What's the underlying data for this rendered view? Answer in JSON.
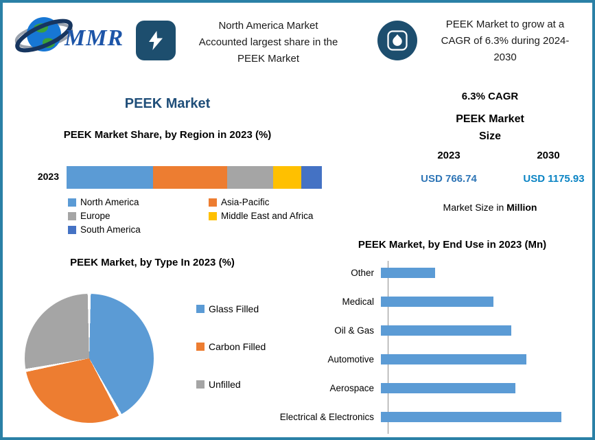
{
  "page": {
    "border_color": "#2a80a6",
    "background": "#ffffff"
  },
  "header": {
    "logo_text": "MMR",
    "highlight_left": "North America Market\nAccounted largest share in the\nPEEK Market",
    "highlight_right": "PEEK Market to grow at a\nCAGR of 6.3% during 2024-\n2030"
  },
  "left_panel": {
    "title": "PEEK Market",
    "region_year_label": "2023"
  },
  "right_panel": {
    "cagr_label": "6.3% CAGR",
    "size_heading": "PEEK Market\nSize",
    "year_left": "2023",
    "year_right": "2030",
    "value_left": "USD 766.74",
    "value_right": "USD 1175.93",
    "value_left_color": "#2e75b6",
    "value_right_color": "#0b84c4",
    "note_prefix": "Market Size in ",
    "note_bold": "Million"
  },
  "chart_data": [
    {
      "type": "bar",
      "subtype": "stacked-horizontal",
      "title": "PEEK Market Share, by Region in 2023 (%)",
      "categories": [
        "2023"
      ],
      "series": [
        {
          "name": "North America",
          "values": [
            34
          ],
          "color": "#5b9bd5"
        },
        {
          "name": "Asia-Pacific",
          "values": [
            29
          ],
          "color": "#ed7d31"
        },
        {
          "name": "Europe",
          "values": [
            18
          ],
          "color": "#a5a5a5"
        },
        {
          "name": "Middle East and Africa",
          "values": [
            11
          ],
          "color": "#ffc000"
        },
        {
          "name": "South America",
          "values": [
            8
          ],
          "color": "#4472c4"
        }
      ],
      "xlim": [
        0,
        100
      ],
      "legend_position": "bottom"
    },
    {
      "type": "pie",
      "title": "PEEK Market, by Type In 2023 (%)",
      "slices": [
        {
          "label": "Glass Filled",
          "value": 42,
          "color": "#5b9bd5"
        },
        {
          "label": "Carbon Filled",
          "value": 30,
          "color": "#ed7d31"
        },
        {
          "label": "Unfilled",
          "value": 28,
          "color": "#a5a5a5"
        }
      ],
      "legend_position": "right"
    },
    {
      "type": "bar",
      "subtype": "horizontal",
      "title": "PEEK Market, by End Use in 2023 (Mn)",
      "categories": [
        "Other",
        "Medical",
        "Oil & Gas",
        "Automotive",
        "Aerospace",
        "Electrical & Electronics"
      ],
      "values": [
        55,
        114,
        132,
        147,
        136,
        182
      ],
      "color": "#5b9bd5",
      "xlim": [
        0,
        208
      ],
      "ylabel": "",
      "xlabel": ""
    }
  ]
}
